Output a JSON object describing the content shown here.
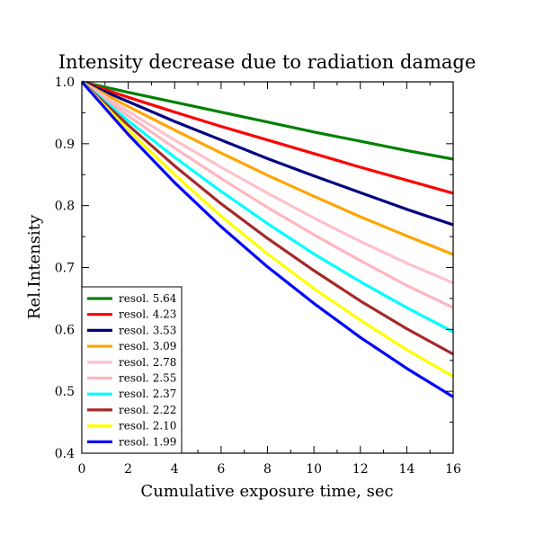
{
  "chart_data": {
    "type": "line",
    "title": "Intensity decrease due to radiation damage",
    "xlabel": "Cumulative exposure time, sec",
    "ylabel": "Rel.Intensity",
    "xlim": [
      0,
      16
    ],
    "ylim": [
      0.4,
      1.0
    ],
    "xticks": [
      "0",
      "2",
      "4",
      "6",
      "8",
      "10",
      "12",
      "14",
      "16"
    ],
    "yticks": [
      "0.4",
      "0.5",
      "0.6",
      "0.7",
      "0.8",
      "0.9",
      "1.0"
    ],
    "grid": false,
    "legend_position": "bottom-left",
    "x": [
      0,
      2,
      4,
      6,
      8,
      10,
      12,
      14,
      16
    ],
    "series": [
      {
        "name": "resol. 5.64",
        "color": "#008000",
        "values": [
          1.0,
          0.983,
          0.967,
          0.951,
          0.935,
          0.919,
          0.904,
          0.889,
          0.875
        ]
      },
      {
        "name": "resol. 4.23",
        "color": "#ff0000",
        "values": [
          1.0,
          0.975,
          0.951,
          0.928,
          0.906,
          0.884,
          0.862,
          0.841,
          0.82
        ]
      },
      {
        "name": "resol. 3.53",
        "color": "#000080",
        "values": [
          1.0,
          0.968,
          0.936,
          0.906,
          0.876,
          0.848,
          0.821,
          0.794,
          0.769
        ]
      },
      {
        "name": "resol. 3.09",
        "color": "#ffa500",
        "values": [
          1.0,
          0.96,
          0.922,
          0.885,
          0.849,
          0.815,
          0.782,
          0.751,
          0.721
        ]
      },
      {
        "name": "resol. 2.78",
        "color": "#ffc0cb",
        "values": [
          1.0,
          0.952,
          0.906,
          0.862,
          0.82,
          0.78,
          0.742,
          0.707,
          0.675
        ]
      },
      {
        "name": "resol. 2.55",
        "color": "#ffb6c1",
        "values": [
          1.0,
          0.945,
          0.893,
          0.844,
          0.797,
          0.753,
          0.711,
          0.671,
          0.635
        ]
      },
      {
        "name": "resol. 2.37",
        "color": "#00ffff",
        "values": [
          1.0,
          0.937,
          0.878,
          0.823,
          0.771,
          0.722,
          0.677,
          0.635,
          0.596
        ]
      },
      {
        "name": "resol. 2.22",
        "color": "#a52a2a",
        "values": [
          1.0,
          0.93,
          0.864,
          0.803,
          0.747,
          0.695,
          0.646,
          0.601,
          0.56
        ]
      },
      {
        "name": "resol. 2.10",
        "color": "#ffff00",
        "values": [
          1.0,
          0.922,
          0.85,
          0.783,
          0.722,
          0.666,
          0.615,
          0.567,
          0.524
        ]
      },
      {
        "name": "resol. 1.99",
        "color": "#0000ff",
        "values": [
          1.0,
          0.915,
          0.837,
          0.766,
          0.701,
          0.642,
          0.587,
          0.537,
          0.491
        ]
      }
    ]
  }
}
